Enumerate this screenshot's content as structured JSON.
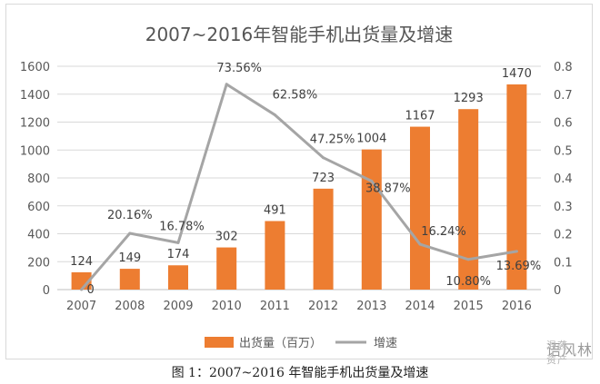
{
  "caption": "图 1：2007~2016 年智能手机出货量及增速",
  "watermark": {
    "main": "语风林",
    "sub": "混袭资产"
  },
  "chart_data": {
    "type": "bar",
    "title": "2007~2016年智能手机出货量及增速",
    "categories": [
      "2007",
      "2008",
      "2009",
      "2010",
      "2011",
      "2012",
      "2013",
      "2014",
      "2015",
      "2016"
    ],
    "series": [
      {
        "name": "出货量（百万）",
        "type": "bar",
        "axis": "left",
        "color": "#ed7d31",
        "values": [
          124,
          149,
          174,
          302,
          491,
          723,
          1004,
          1167,
          1293,
          1470
        ],
        "labels": [
          "124",
          "149",
          "174",
          "302",
          "491",
          "723",
          "1004",
          "1167",
          "1293",
          "1470"
        ]
      },
      {
        "name": "增速",
        "type": "line",
        "axis": "right",
        "color": "#a5a5a5",
        "values": [
          0,
          0.2016,
          0.1678,
          0.7356,
          0.6258,
          0.4725,
          0.3887,
          0.1624,
          0.108,
          0.1369
        ],
        "labels": [
          "0",
          "20.16%",
          "16.78%",
          "73.56%",
          "62.58%",
          "47.25%",
          "38.87%",
          "16.24%",
          "10.80%",
          "13.69%"
        ]
      }
    ],
    "y_left": {
      "min": 0,
      "max": 1600,
      "ticks": [
        "0",
        "200",
        "400",
        "600",
        "800",
        "1000",
        "1200",
        "1400",
        "1600"
      ]
    },
    "y_right": {
      "min": 0,
      "max": 0.8,
      "ticks": [
        "0",
        "0.1",
        "0.2",
        "0.3",
        "0.4",
        "0.5",
        "0.6",
        "0.7",
        "0.8"
      ]
    },
    "legend": {
      "position": "bottom"
    },
    "grid": true
  }
}
